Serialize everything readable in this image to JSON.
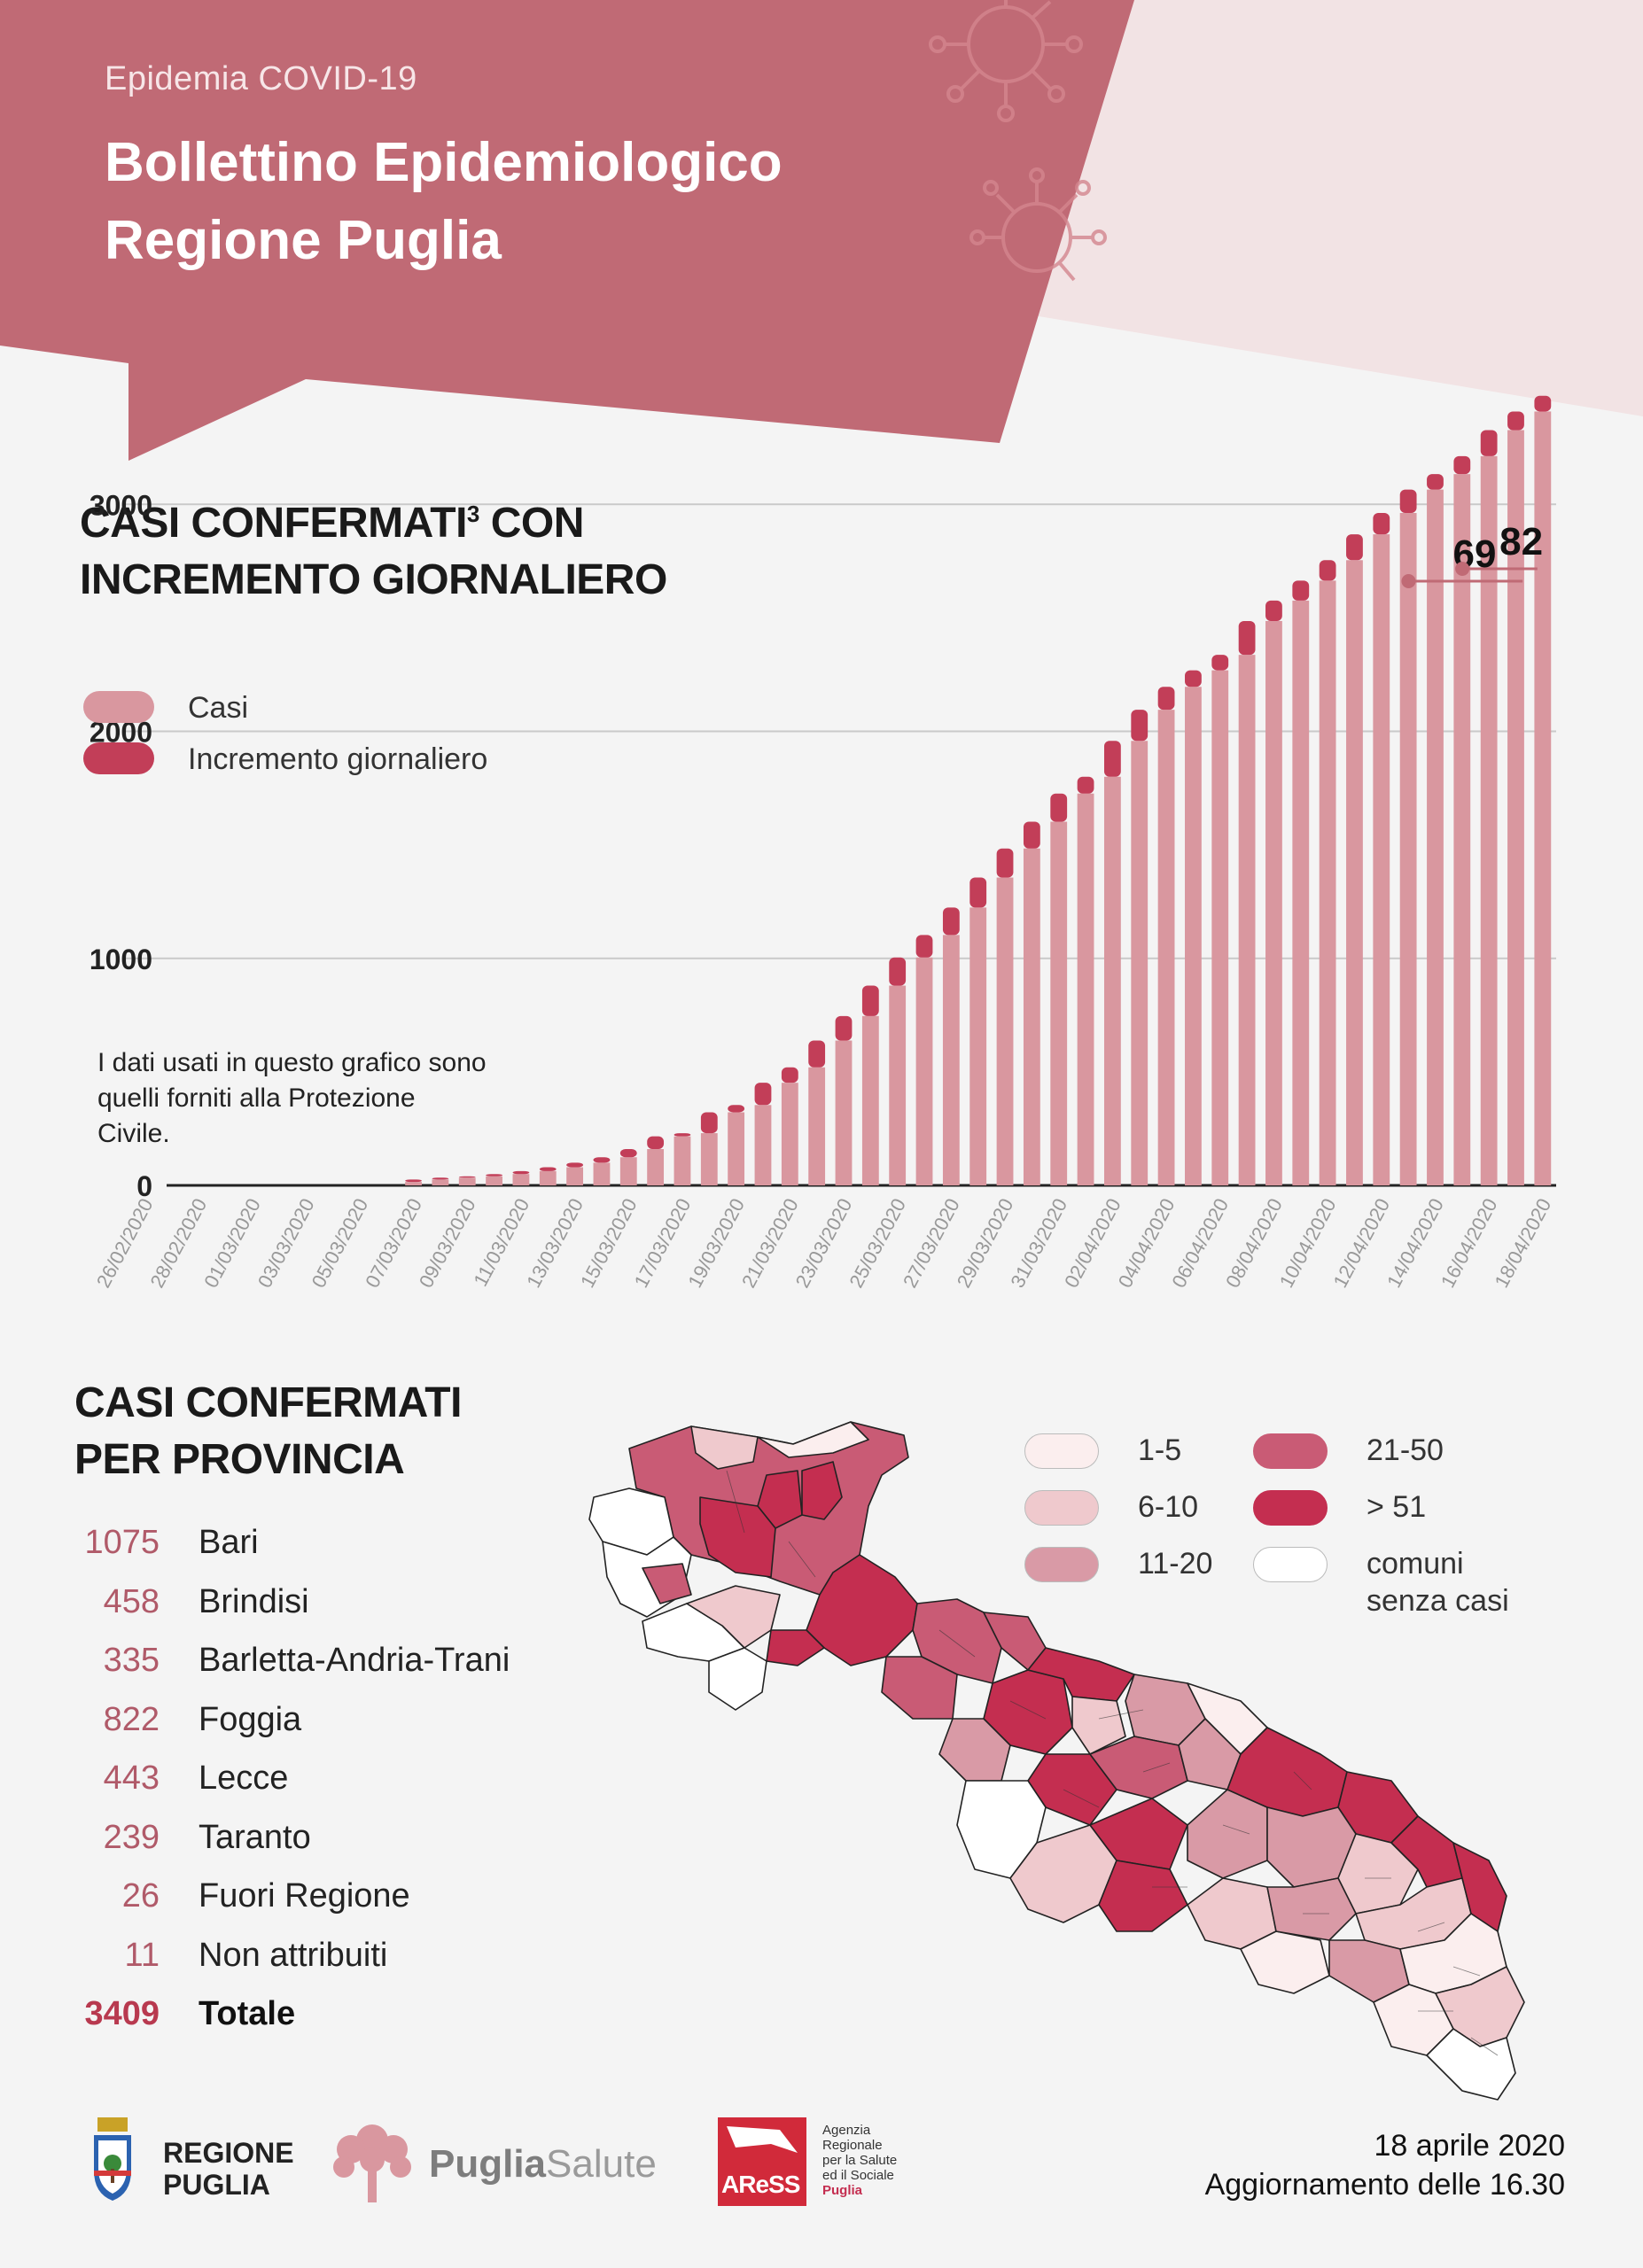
{
  "header": {
    "eyebrow": "Epidemia COVID-19",
    "title_line1": "Bollettino Epidemiologico",
    "title_line2": "Regione Puglia"
  },
  "colors": {
    "header_bg": "#c06a75",
    "header_light": "#f2e3e4",
    "casi": "#d9979f",
    "incremento": "#c23e58",
    "c1_5": "#fbeeee",
    "c6_10": "#efc9cd",
    "c11_20": "#d99aa6",
    "c21_50": "#c95b75",
    "c51": "#c42e50",
    "c0": "#ffffff"
  },
  "chart_section": {
    "title_line1": "CASI CONFERMATI",
    "title_sup": "3",
    "title_line1_end": " CON",
    "title_line2": "INCREMENTO GIORNALIERO",
    "note": "I dati usati in questo grafico sono quelli forniti alla Protezione Civile."
  },
  "chart_data": {
    "type": "bar",
    "stacked": true,
    "y_ticks": [
      "0",
      "1000",
      "2000",
      "3000"
    ],
    "ylim": [
      0,
      3200
    ],
    "grid": true,
    "legend": {
      "position": "top-left",
      "items": [
        "Casi",
        "Incremento giornaliero"
      ]
    },
    "x_tick_labels": [
      "26/02/2020",
      "28/02/2020",
      "01/03/2020",
      "03/03/2020",
      "05/03/2020",
      "07/03/2020",
      "09/03/2020",
      "11/03/2020",
      "13/03/2020",
      "15/03/2020",
      "17/03/2020",
      "19/03/2020",
      "21/03/2020",
      "23/03/2020",
      "25/03/2020",
      "27/03/2020",
      "29/03/2020",
      "31/03/2020",
      "02/04/2020",
      "04/04/2020",
      "06/04/2020",
      "08/04/2020",
      "10/04/2020",
      "12/04/2020",
      "14/04/2020",
      "16/04/2020",
      "18/04/2020"
    ],
    "categories": [
      "26/02",
      "27/02",
      "28/02",
      "29/02",
      "01/03",
      "02/03",
      "03/03",
      "04/03",
      "05/03",
      "06/03",
      "07/03",
      "08/03",
      "09/03",
      "10/03",
      "11/03",
      "12/03",
      "13/03",
      "14/03",
      "15/03",
      "16/03",
      "17/03",
      "18/03",
      "19/03",
      "20/03",
      "21/03",
      "22/03",
      "23/03",
      "24/03",
      "25/03",
      "26/03",
      "27/03",
      "28/03",
      "29/03",
      "30/03",
      "31/03",
      "01/04",
      "02/04",
      "03/04",
      "04/04",
      "05/04",
      "06/04",
      "07/04",
      "08/04",
      "09/04",
      "10/04",
      "11/04",
      "12/04",
      "13/04",
      "14/04",
      "15/04",
      "16/04",
      "17/04",
      "18/04"
    ],
    "series": [
      {
        "name": "Casi",
        "values": [
          0,
          0,
          0,
          0,
          0,
          0,
          0,
          0,
          0,
          0,
          15,
          26,
          34,
          40,
          50,
          63,
          80,
          100,
          124,
          160,
          216,
          230,
          322,
          354,
          452,
          520,
          638,
          746,
          880,
          1004,
          1103,
          1224,
          1356,
          1484,
          1602,
          1726,
          1800,
          1958,
          2095,
          2196,
          2269,
          2337,
          2486,
          2576,
          2664,
          2754,
          2868,
          2962,
          3065,
          3133,
          3212,
          3327,
          3409
        ]
      },
      {
        "name": "Incremento giornaliero",
        "values": [
          0,
          0,
          0,
          0,
          0,
          0,
          0,
          0,
          0,
          0,
          11,
          8,
          6,
          10,
          13,
          17,
          20,
          24,
          36,
          56,
          14,
          92,
          32,
          98,
          68,
          118,
          108,
          134,
          124,
          99,
          121,
          132,
          128,
          118,
          124,
          74,
          158,
          137,
          101,
          73,
          68,
          149,
          90,
          88,
          90,
          114,
          94,
          103,
          68,
          79,
          115,
          82,
          69
        ]
      }
    ],
    "annotations": [
      {
        "label": "69"
      },
      {
        "label": "82"
      }
    ]
  },
  "province_section": {
    "title_line1": "CASI CONFERMATI",
    "title_line2": "PER PROVINCIA",
    "rows": [
      {
        "value": "1075",
        "name": "Bari"
      },
      {
        "value": "458",
        "name": "Brindisi"
      },
      {
        "value": "335",
        "name": "Barletta-Andria-Trani"
      },
      {
        "value": "822",
        "name": "Foggia"
      },
      {
        "value": "443",
        "name": "Lecce"
      },
      {
        "value": "239",
        "name": "Taranto"
      },
      {
        "value": "26",
        "name": "Fuori Regione"
      },
      {
        "value": "11",
        "name": "Non attribuiti"
      }
    ],
    "total": {
      "value": "3409",
      "name": "Totale"
    }
  },
  "map_legend": [
    {
      "label": "1-5",
      "color": "#fbeeee"
    },
    {
      "label": "6-10",
      "color": "#efc9cd"
    },
    {
      "label": "11-20",
      "color": "#d99aa6"
    },
    {
      "label": "21-50",
      "color": "#c95b75"
    },
    {
      "label": "> 51",
      "color": "#c42e50"
    },
    {
      "label": "comuni senza casi",
      "color": "#ffffff"
    }
  ],
  "footer": {
    "logo1_line1": "REGIONE",
    "logo1_line2": "PUGLIA",
    "logo2_a": "Puglia",
    "logo2_b": "Salute",
    "logo3_mark": "AReSS",
    "logo3_text": [
      "Agenzia",
      "Regionale",
      "per la Salute",
      "ed il Sociale",
      "Puglia"
    ],
    "date": "18 aprile 2020",
    "update": "Aggiornamento delle 16.30"
  }
}
